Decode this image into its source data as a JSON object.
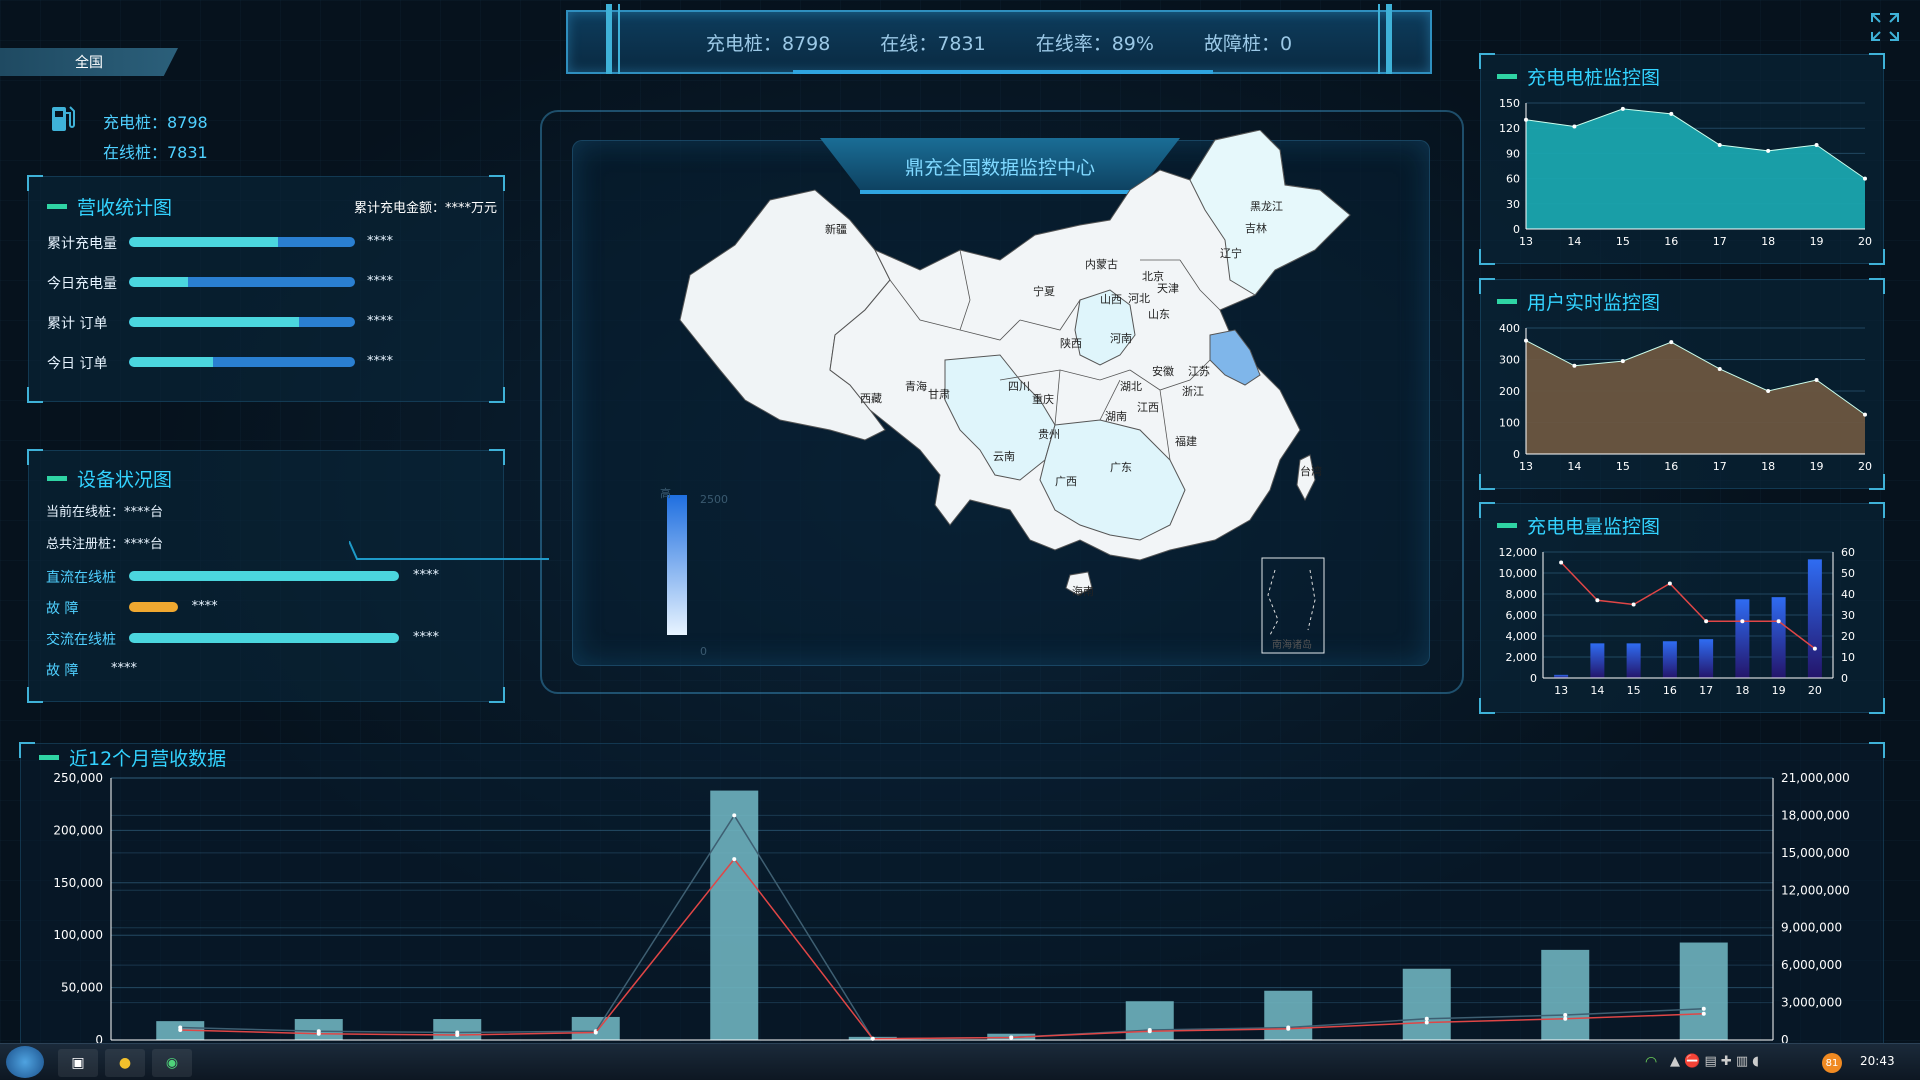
{
  "header": {
    "stats": [
      {
        "label": "充电桩",
        "sep": "：",
        "value": "8798"
      },
      {
        "label": "在线",
        "sep": "：",
        "value": "7831"
      },
      {
        "label": "在线率",
        "sep": "：",
        "value": "89%"
      },
      {
        "label": "故障桩",
        "sep": "：",
        "value": "0"
      }
    ]
  },
  "region_tab": "全国",
  "left_summary": {
    "charger": "充电桩：8798",
    "online": "在线桩：7831"
  },
  "revenue_panel": {
    "title": "营收统计图",
    "total_amount": "累计充电金额：****万元",
    "rows": [
      {
        "label": "累计充电量",
        "value": "****",
        "fill": 0.66
      },
      {
        "label": "今日充电量",
        "value": "****",
        "fill": 0.26
      },
      {
        "label": "累计  订单",
        "value": "****",
        "fill": 0.75
      },
      {
        "label": "今日  订单",
        "value": "****",
        "fill": 0.37
      }
    ]
  },
  "device_panel": {
    "title": "设备状况图",
    "current_online": "当前在线桩：****台",
    "total_registered": "总共注册桩：****台",
    "rows": [
      {
        "label": "直流在线桩",
        "value": "****",
        "fill": 1.0,
        "color": "#4bd6de"
      },
      {
        "label": "故  障",
        "value": "****",
        "fill": 0.18,
        "color": "#f0a830"
      },
      {
        "label": "交流在线桩",
        "value": "****",
        "fill": 1.0,
        "color": "#4bd6de"
      },
      {
        "label": "故  障",
        "value": "****",
        "fill": 0,
        "color": "#f0a830"
      }
    ]
  },
  "map": {
    "title": "鼎充全国数据监控中心",
    "legend_high": "高",
    "legend_max": "2500",
    "legend_min": "0",
    "provinces": [
      "新疆",
      "西藏",
      "青海",
      "甘肃",
      "内蒙古",
      "宁夏",
      "陕西",
      "四川",
      "重庆",
      "云南",
      "贵州",
      "广西",
      "广东",
      "湖南",
      "湖北",
      "河南",
      "山西",
      "河北",
      "北京",
      "天津",
      "山东",
      "江苏",
      "安徽",
      "浙江",
      "江西",
      "福建",
      "黑龙江",
      "吉林",
      "辽宁",
      "海南",
      "台湾"
    ],
    "south_sea_label": "南海诸岛"
  },
  "charts_right": [
    {
      "title": "充电电桩监控图",
      "chart_data": {
        "type": "area",
        "x": [
          "13",
          "14",
          "15",
          "16",
          "17",
          "18",
          "19",
          "20"
        ],
        "values": [
          130,
          122,
          143,
          137,
          100,
          93,
          100,
          60
        ],
        "ylim": [
          0,
          150
        ],
        "yticks": [
          "150",
          "120",
          "90",
          "60",
          "30",
          "0"
        ],
        "color": "#1aa5ae"
      }
    },
    {
      "title": "用户实时监控图",
      "chart_data": {
        "type": "area",
        "x": [
          "13",
          "14",
          "15",
          "16",
          "17",
          "18",
          "19",
          "20"
        ],
        "values": [
          360,
          280,
          295,
          355,
          270,
          200,
          235,
          125
        ],
        "ylim": [
          0,
          400
        ],
        "yticks": [
          "400",
          "300",
          "200",
          "100",
          "0"
        ],
        "color": "#6b5640"
      }
    },
    {
      "title": "充电电量监控图",
      "chart_data": {
        "type": "bar",
        "x": [
          "13",
          "14",
          "15",
          "16",
          "17",
          "18",
          "19",
          "20"
        ],
        "series": [
          {
            "axis": "left",
            "values": [
              300,
              3300,
              3300,
              3500,
              3700,
              7500,
              7700,
              11300
            ]
          },
          {
            "axis": "right",
            "values": [
              55,
              37,
              35,
              45,
              27,
              27,
              27,
              14
            ]
          }
        ],
        "ylim_left": [
          0,
          12000
        ],
        "ylim_right": [
          0,
          60
        ],
        "yticks_left": [
          "12,000",
          "10,000",
          "8,000",
          "6,000",
          "4,000",
          "2,000",
          "0"
        ],
        "yticks_right": [
          "60",
          "50",
          "40",
          "30",
          "20",
          "10",
          "0"
        ]
      }
    }
  ],
  "bottom_chart": {
    "title": "近12个月营收数据",
    "chart_data": {
      "type": "bar",
      "x_count": 12,
      "bars": [
        18000,
        20000,
        20000,
        22000,
        238000,
        3000,
        6000,
        37000,
        47000,
        68000,
        86000,
        93000
      ],
      "line_dark": [
        1000000,
        700000,
        600000,
        700000,
        18000000,
        100000,
        200000,
        800000,
        1000000,
        1700000,
        2000000,
        2500000
      ],
      "line_red": [
        800000,
        500000,
        400000,
        600000,
        14500000,
        100000,
        200000,
        700000,
        900000,
        1400000,
        1700000,
        2100000
      ],
      "ylim_left": [
        0,
        250000
      ],
      "ylim_right": [
        0,
        21000000
      ],
      "yticks_left": [
        "250,000",
        "200,000",
        "150,000",
        "100,000",
        "50,000",
        "0"
      ],
      "yticks_right": [
        "21,000,000",
        "18,000,000",
        "15,000,000",
        "12,000,000",
        "9,000,000",
        "6,000,000",
        "3,000,000",
        "0"
      ]
    }
  },
  "taskbar": {
    "time": "20:43",
    "badge": "81"
  }
}
